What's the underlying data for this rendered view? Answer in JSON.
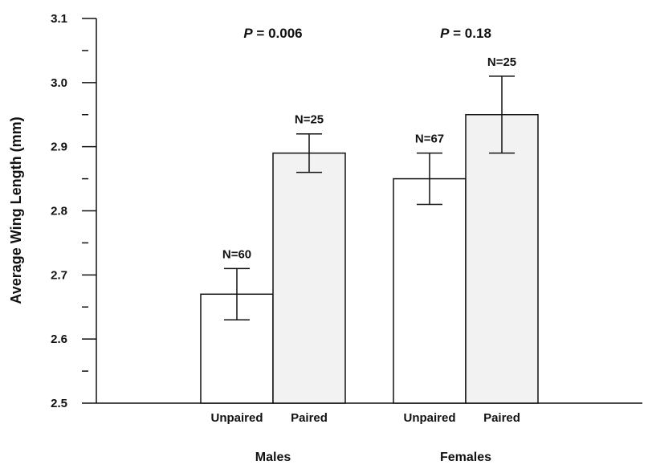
{
  "chart_data": {
    "type": "bar",
    "ylabel": "Average Wing Length (mm)",
    "ylim": [
      2.5,
      3.1
    ],
    "y_ticks": [
      "2.5",
      "2.6",
      "2.7",
      "2.8",
      "2.9",
      "3.0",
      "3.1"
    ],
    "grid": false,
    "legend": "none",
    "groups": [
      {
        "name": "Males",
        "p_prefix": "P",
        "p_value": "= 0.006",
        "bars": [
          {
            "category": "Unpaired",
            "value": 2.67,
            "error_low": 2.63,
            "error_high": 2.71,
            "n_label": "N=60",
            "fill": "#ffffff"
          },
          {
            "category": "Paired",
            "value": 2.89,
            "error_low": 2.86,
            "error_high": 2.92,
            "n_label": "N=25",
            "fill": "#f2f2f2"
          }
        ]
      },
      {
        "name": "Females",
        "p_prefix": "P",
        "p_value": "= 0.18",
        "bars": [
          {
            "category": "Unpaired",
            "value": 2.85,
            "error_low": 2.81,
            "error_high": 2.89,
            "n_label": "N=67",
            "fill": "#ffffff"
          },
          {
            "category": "Paired",
            "value": 2.95,
            "error_low": 2.89,
            "error_high": 3.01,
            "n_label": "N=25",
            "fill": "#f2f2f2"
          }
        ]
      }
    ]
  }
}
